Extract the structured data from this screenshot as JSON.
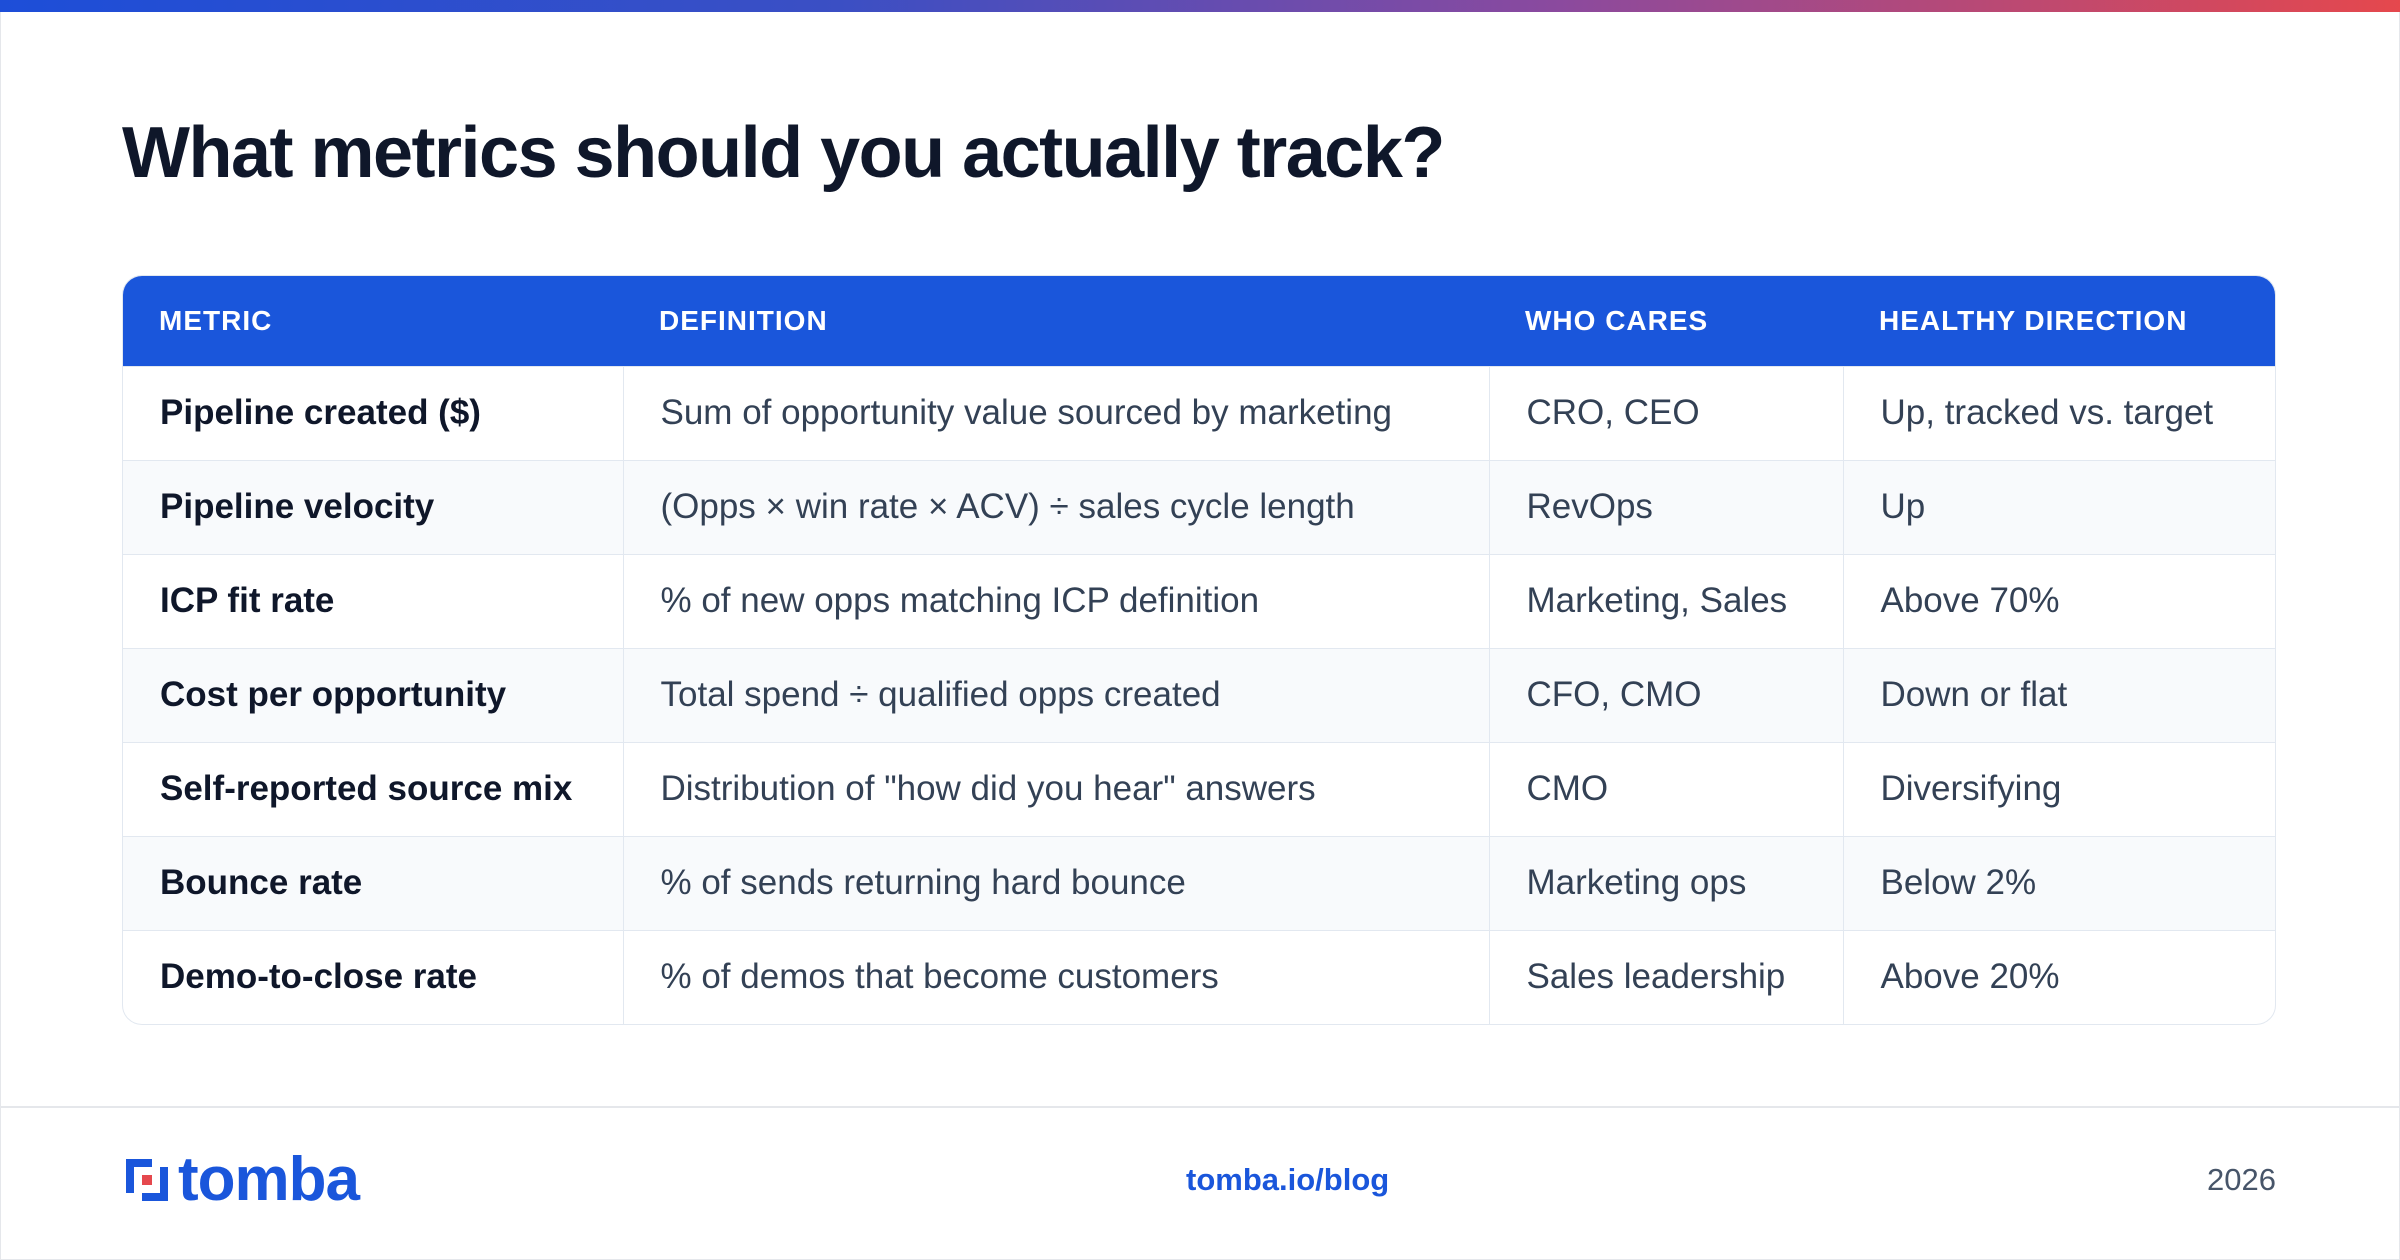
{
  "title": "What metrics should you actually track?",
  "table": {
    "headers": [
      "METRIC",
      "DEFINITION",
      "WHO CARES",
      "HEALTHY DIRECTION"
    ],
    "rows": [
      [
        "Pipeline created ($)",
        "Sum of opportunity value sourced by marketing",
        "CRO, CEO",
        "Up, tracked vs. target"
      ],
      [
        "Pipeline velocity",
        "(Opps × win rate × ACV) ÷ sales cycle length",
        "RevOps",
        "Up"
      ],
      [
        "ICP fit rate",
        "% of new opps matching ICP definition",
        "Marketing, Sales",
        "Above 70%"
      ],
      [
        "Cost per opportunity",
        "Total spend ÷ qualified opps created",
        "CFO, CMO",
        "Down or flat"
      ],
      [
        "Self-reported source mix",
        "Distribution of \"how did you hear\" answers",
        "CMO",
        "Diversifying"
      ],
      [
        "Bounce rate",
        "% of sends returning hard bounce",
        "Marketing ops",
        "Below 2%"
      ],
      [
        "Demo-to-close rate",
        "% of demos that become customers",
        "Sales leadership",
        "Above 20%"
      ]
    ]
  },
  "footer": {
    "logo_text": "tomba",
    "link": "tomba.io/blog",
    "year": "2026"
  },
  "colors": {
    "accent": "#1a56db",
    "title": "#0f172a",
    "logo_red": "#e5484d"
  }
}
